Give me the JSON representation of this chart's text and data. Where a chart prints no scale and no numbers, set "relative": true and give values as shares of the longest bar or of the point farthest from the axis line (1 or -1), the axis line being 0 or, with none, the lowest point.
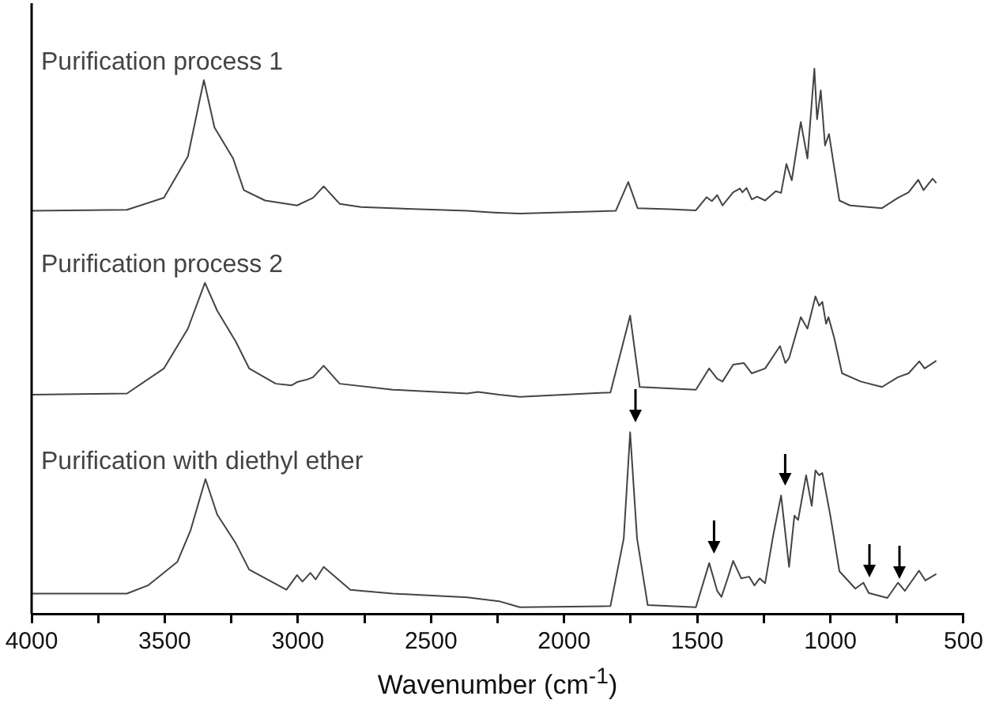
{
  "chart_data": {
    "type": "line",
    "xlabel": "Wavenumber (cm$^{-1}$)",
    "relative": true,
    "legend": false,
    "grid": false,
    "marker": "none",
    "line_style": "solid",
    "tick_labels": "x",
    "xlim": [
      4000,
      500
    ],
    "xticks": [
      4000,
      {
        "value": 3750,
        "label": null
      },
      3500,
      {
        "value": 3250,
        "label": null
      },
      3000,
      {
        "value": 2750,
        "label": null
      },
      2500,
      {
        "value": 2250,
        "label": null
      },
      2000,
      {
        "value": 1750,
        "label": null
      },
      1500,
      {
        "value": 1250,
        "label": null
      },
      1000,
      {
        "value": 750,
        "label": null
      },
      500
    ],
    "series": [
      {
        "name": "Purification process 1",
        "color": "#444444",
        "x": [
          4000,
          3642,
          3503,
          3413,
          3353,
          3313,
          3243,
          3203,
          3123,
          3003,
          2943,
          2903,
          2843,
          2763,
          2364,
          2264,
          2166,
          1806,
          1759,
          1724,
          1604,
          1505,
          1465,
          1445,
          1425,
          1405,
          1365,
          1340,
          1330,
          1315,
          1295,
          1275,
          1245,
          1205,
          1185,
          1165,
          1145,
          1111,
          1086,
          1060,
          1050,
          1036,
          1020,
          1005,
          986,
          966,
          926,
          806,
          746,
          706,
          670,
          650,
          616,
          602
        ],
        "values": [
          0.739,
          0.741,
          0.763,
          0.839,
          0.979,
          0.892,
          0.835,
          0.777,
          0.758,
          0.749,
          0.763,
          0.784,
          0.752,
          0.746,
          0.739,
          0.736,
          0.734,
          0.739,
          0.792,
          0.744,
          0.742,
          0.74,
          0.764,
          0.757,
          0.768,
          0.749,
          0.773,
          0.78,
          0.773,
          0.781,
          0.76,
          0.765,
          0.758,
          0.775,
          0.772,
          0.825,
          0.795,
          0.902,
          0.835,
          1.0,
          0.907,
          0.96,
          0.859,
          0.88,
          0.82,
          0.758,
          0.749,
          0.744,
          0.763,
          0.773,
          0.796,
          0.777,
          0.798,
          0.79
        ]
      },
      {
        "name": "Purification process 2",
        "color": "#444444",
        "x": [
          4000,
          3642,
          3503,
          3413,
          3349,
          3303,
          3233,
          3183,
          3083,
          3023,
          3003,
          2963,
          2943,
          2903,
          2843,
          2643,
          2364,
          2324,
          2244,
          2166,
          1826,
          1752,
          1716,
          1505,
          1455,
          1425,
          1405,
          1365,
          1325,
          1295,
          1245,
          1189,
          1169,
          1155,
          1111,
          1086,
          1056,
          1042,
          1030,
          1016,
          1007,
          986,
          956,
          886,
          806,
          746,
          706,
          666,
          646,
          602
        ],
        "values": [
          0.402,
          0.404,
          0.45,
          0.523,
          0.607,
          0.556,
          0.499,
          0.45,
          0.422,
          0.419,
          0.425,
          0.43,
          0.434,
          0.455,
          0.422,
          0.411,
          0.404,
          0.407,
          0.402,
          0.398,
          0.406,
          0.547,
          0.416,
          0.411,
          0.45,
          0.431,
          0.426,
          0.457,
          0.46,
          0.441,
          0.45,
          0.491,
          0.46,
          0.469,
          0.544,
          0.523,
          0.582,
          0.565,
          0.572,
          0.532,
          0.544,
          0.507,
          0.441,
          0.426,
          0.416,
          0.434,
          0.441,
          0.463,
          0.45,
          0.464
        ]
      },
      {
        "name": "Purification with diethyl ether",
        "color": "#444444",
        "x": [
          4000,
          3642,
          3563,
          3453,
          3403,
          3347,
          3303,
          3233,
          3183,
          3043,
          3003,
          2983,
          2953,
          2933,
          2903,
          2803,
          2643,
          2364,
          2244,
          2166,
          1826,
          1776,
          1752,
          1726,
          1686,
          1505,
          1455,
          1425,
          1409,
          1385,
          1365,
          1335,
          1305,
          1285,
          1265,
          1245,
          1215,
          1185,
          1155,
          1135,
          1121,
          1091,
          1070,
          1056,
          1042,
          1030,
          1000,
          966,
          906,
          876,
          856,
          786,
          746,
          720,
          667,
          643,
          602
        ],
        "values": [
          0.037,
          0.037,
          0.052,
          0.095,
          0.153,
          0.247,
          0.182,
          0.129,
          0.081,
          0.044,
          0.071,
          0.059,
          0.075,
          0.063,
          0.086,
          0.044,
          0.037,
          0.03,
          0.023,
          0.012,
          0.014,
          0.138,
          0.333,
          0.138,
          0.016,
          0.012,
          0.093,
          0.042,
          0.031,
          0.066,
          0.097,
          0.065,
          0.068,
          0.052,
          0.065,
          0.056,
          0.143,
          0.217,
          0.086,
          0.18,
          0.172,
          0.254,
          0.198,
          0.263,
          0.254,
          0.258,
          0.18,
          0.078,
          0.046,
          0.057,
          0.038,
          0.029,
          0.057,
          0.042,
          0.079,
          0.061,
          0.073
        ]
      }
    ]
  }
}
